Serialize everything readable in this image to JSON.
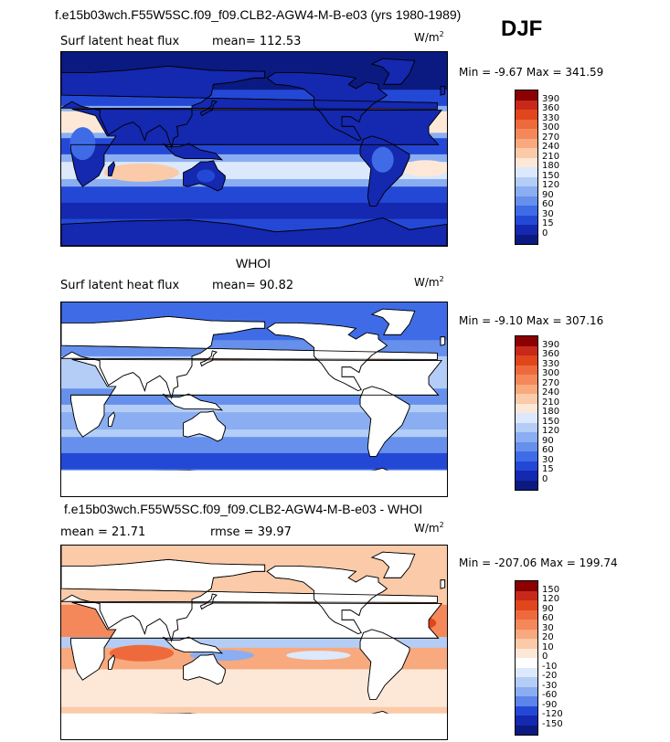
{
  "header": {
    "main_title": "f.e15b03wch.F55W5SC.f09_f09.CLB2-AGW4-M-B-e03 (yrs 1980-1989)",
    "season": "DJF"
  },
  "panels": [
    {
      "field": "Surf latent heat flux",
      "stat": "mean=  112.53",
      "units": "W/m",
      "units_exp": "2",
      "minmax": "Min =   -9.67 Max = 341.59",
      "legend_levels": [
        "390",
        "360",
        "330",
        "300",
        "270",
        "240",
        "210",
        "180",
        "150",
        "120",
        "90",
        "60",
        "30",
        "15",
        "0"
      ],
      "legend_colors": [
        "#8b0000",
        "#c8281a",
        "#e0461c",
        "#ee6a3c",
        "#f4885a",
        "#f8a97e",
        "#fbcaa8",
        "#fde8d8",
        "#dce8fb",
        "#b3cdf7",
        "#8aaef1",
        "#6690ec",
        "#3f6ce6",
        "#2448d6",
        "#1428b0",
        "#0a1a80"
      ],
      "ocean_style": "mean"
    },
    {
      "subtitle": "WHOI",
      "field": "Surf latent heat flux",
      "stat": "mean=  90.82",
      "units": "W/m",
      "units_exp": "2",
      "minmax": "Min =   -9.10 Max = 307.16",
      "legend_levels": [
        "390",
        "360",
        "330",
        "300",
        "270",
        "240",
        "210",
        "180",
        "150",
        "120",
        "90",
        "60",
        "30",
        "15",
        "0"
      ],
      "legend_colors": [
        "#8b0000",
        "#c8281a",
        "#e0461c",
        "#ee6a3c",
        "#f4885a",
        "#f8a97e",
        "#fbcaa8",
        "#fde8d8",
        "#dce8fb",
        "#b3cdf7",
        "#8aaef1",
        "#6690ec",
        "#3f6ce6",
        "#2448d6",
        "#1428b0",
        "#0a1a80"
      ],
      "ocean_style": "obs"
    },
    {
      "subtitle": "f.e15b03wch.F55W5SC.f09_f09.CLB2-AGW4-M-B-e03 - WHOI",
      "stat_left": "mean =  21.71",
      "stat_right": "rmse =  39.97",
      "units": "W/m",
      "units_exp": "2",
      "minmax": "Min = -207.06 Max = 199.74",
      "legend_levels": [
        "150",
        "120",
        "90",
        "60",
        "30",
        "20",
        "10",
        "0",
        "-10",
        "-20",
        "-30",
        "-60",
        "-90",
        "-120",
        "-150"
      ],
      "legend_colors": [
        "#8b0000",
        "#c8281a",
        "#e0461c",
        "#ee6a3c",
        "#f4885a",
        "#f8a97e",
        "#fbcaa8",
        "#fde8d8",
        "#ffffff",
        "#dce8fb",
        "#b3cdf7",
        "#8aaef1",
        "#5c84ea",
        "#2448d6",
        "#1428b0",
        "#0a1a80"
      ],
      "ocean_style": "diff"
    }
  ]
}
